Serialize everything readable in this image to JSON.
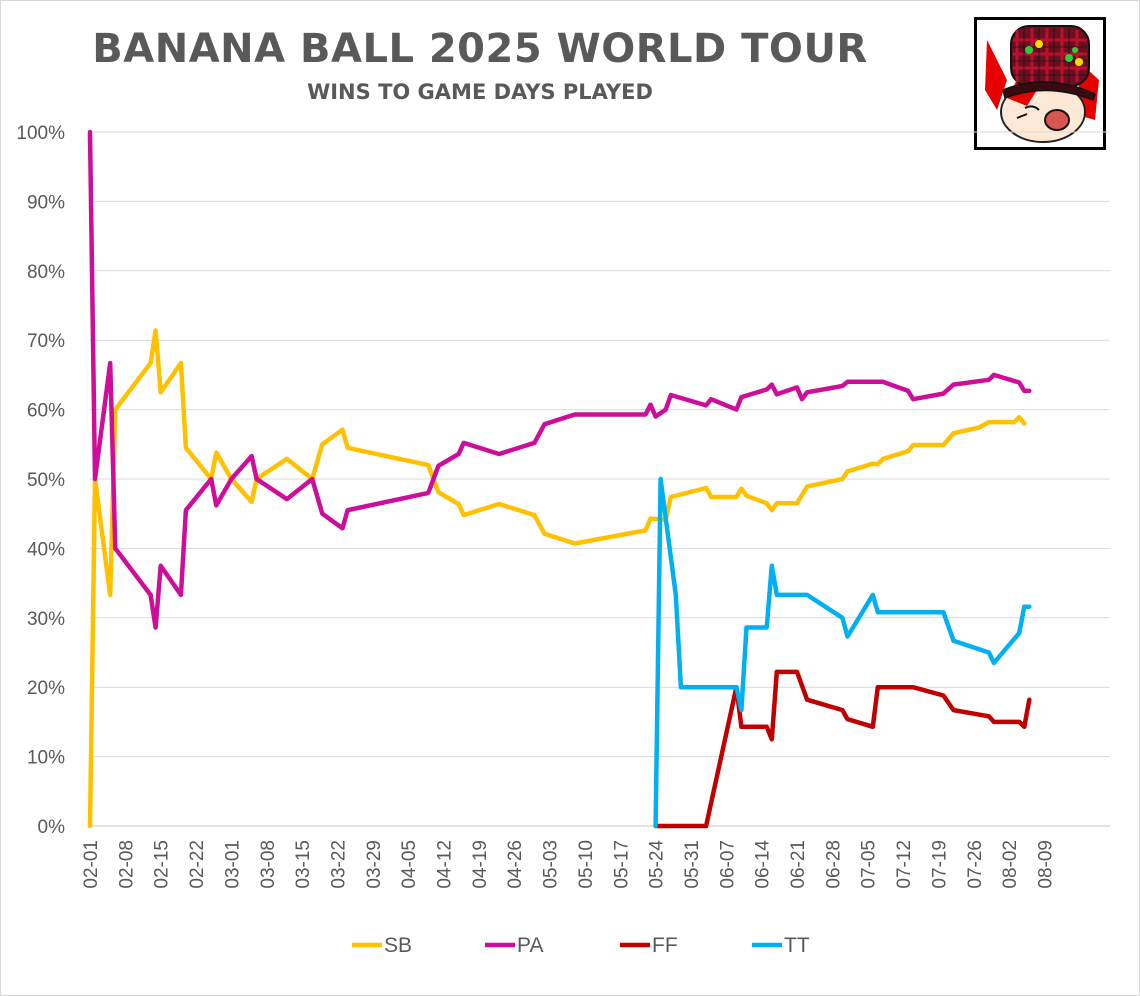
{
  "chart_data": {
    "type": "line",
    "title": "BANANA BALL 2025 WORLD TOUR",
    "subtitle": "WINS TO GAME DAYS PLAYED",
    "xlabel": "",
    "ylabel": "",
    "ylim": [
      0,
      100
    ],
    "y_ticks": [
      "0%",
      "10%",
      "20%",
      "30%",
      "40%",
      "50%",
      "60%",
      "70%",
      "80%",
      "90%",
      "100%"
    ],
    "x_ticks": [
      "02-01",
      "02-08",
      "02-15",
      "02-22",
      "03-01",
      "03-08",
      "03-15",
      "03-22",
      "03-29",
      "04-05",
      "04-12",
      "04-19",
      "04-26",
      "05-03",
      "05-10",
      "05-17",
      "05-24",
      "05-31",
      "06-07",
      "06-14",
      "06-21",
      "06-28",
      "07-05",
      "07-12",
      "07-19",
      "07-26",
      "08-02",
      "08-09"
    ],
    "x_start": "02-01",
    "grid": "horizontal",
    "legend_position": "bottom",
    "series": [
      {
        "name": "SB",
        "color": "#FFC000",
        "points": [
          [
            "02-01",
            0
          ],
          [
            "02-02",
            50
          ],
          [
            "02-05",
            33.3
          ],
          [
            "02-06",
            60
          ],
          [
            "02-13",
            66.7
          ],
          [
            "02-14",
            71.4
          ],
          [
            "02-15",
            62.5
          ],
          [
            "02-19",
            66.7
          ],
          [
            "02-20",
            54.5
          ],
          [
            "02-25",
            50
          ],
          [
            "02-26",
            53.8
          ],
          [
            "03-01",
            50
          ],
          [
            "03-05",
            46.7
          ],
          [
            "03-06",
            50
          ],
          [
            "03-12",
            52.9
          ],
          [
            "03-17",
            50
          ],
          [
            "03-19",
            55
          ],
          [
            "03-23",
            57.1
          ],
          [
            "03-24",
            54.5
          ],
          [
            "04-09",
            52
          ],
          [
            "04-11",
            48.1
          ],
          [
            "04-15",
            46.4
          ],
          [
            "04-16",
            44.8
          ],
          [
            "04-23",
            46.4
          ],
          [
            "04-30",
            44.8
          ],
          [
            "05-02",
            42.1
          ],
          [
            "05-08",
            40.7
          ],
          [
            "05-22",
            42.6
          ],
          [
            "05-23",
            44.3
          ],
          [
            "05-26",
            44.1
          ],
          [
            "05-27",
            47.4
          ],
          [
            "06-03",
            48.7
          ],
          [
            "06-04",
            47.4
          ],
          [
            "06-09",
            47.4
          ],
          [
            "06-10",
            48.6
          ],
          [
            "06-11",
            47.6
          ],
          [
            "06-15",
            46.5
          ],
          [
            "06-16",
            45.5
          ],
          [
            "06-17",
            46.5
          ],
          [
            "06-21",
            46.5
          ],
          [
            "06-23",
            48.9
          ],
          [
            "06-30",
            50
          ],
          [
            "07-01",
            51.1
          ],
          [
            "07-06",
            52.2
          ],
          [
            "07-07",
            52.1
          ],
          [
            "07-08",
            52.9
          ],
          [
            "07-13",
            54
          ],
          [
            "07-14",
            54.9
          ],
          [
            "07-20",
            54.9
          ],
          [
            "07-22",
            56.6
          ],
          [
            "07-27",
            57.4
          ],
          [
            "07-29",
            58.2
          ],
          [
            "08-03",
            58.2
          ],
          [
            "08-04",
            58.9
          ],
          [
            "08-05",
            58
          ]
        ]
      },
      {
        "name": "PA",
        "color": "#CC0E9A",
        "points": [
          [
            "02-01",
            100
          ],
          [
            "02-02",
            50
          ],
          [
            "02-05",
            66.7
          ],
          [
            "02-06",
            40
          ],
          [
            "02-13",
            33.3
          ],
          [
            "02-14",
            28.6
          ],
          [
            "02-15",
            37.5
          ],
          [
            "02-19",
            33.3
          ],
          [
            "02-20",
            45.5
          ],
          [
            "02-25",
            50
          ],
          [
            "02-26",
            46.2
          ],
          [
            "03-01",
            50
          ],
          [
            "03-05",
            53.3
          ],
          [
            "03-06",
            50
          ],
          [
            "03-12",
            47.1
          ],
          [
            "03-17",
            50
          ],
          [
            "03-19",
            45
          ],
          [
            "03-23",
            42.9
          ],
          [
            "03-24",
            45.5
          ],
          [
            "04-09",
            48
          ],
          [
            "04-11",
            51.9
          ],
          [
            "04-15",
            53.6
          ],
          [
            "04-16",
            55.2
          ],
          [
            "04-23",
            53.6
          ],
          [
            "04-30",
            55.2
          ],
          [
            "05-02",
            57.9
          ],
          [
            "05-08",
            59.3
          ],
          [
            "05-22",
            59.3
          ],
          [
            "05-23",
            60.7
          ],
          [
            "05-24",
            59
          ],
          [
            "05-26",
            60
          ],
          [
            "05-27",
            62.1
          ],
          [
            "06-03",
            60.6
          ],
          [
            "06-04",
            61.5
          ],
          [
            "06-09",
            60
          ],
          [
            "06-10",
            61.8
          ],
          [
            "06-15",
            62.9
          ],
          [
            "06-16",
            63.6
          ],
          [
            "06-17",
            62.2
          ],
          [
            "06-21",
            63.2
          ],
          [
            "06-22",
            61.5
          ],
          [
            "06-23",
            62.5
          ],
          [
            "06-30",
            63.4
          ],
          [
            "07-01",
            64
          ],
          [
            "07-06",
            64
          ],
          [
            "07-07",
            64
          ],
          [
            "07-08",
            64
          ],
          [
            "07-13",
            62.7
          ],
          [
            "07-14",
            61.5
          ],
          [
            "07-20",
            62.3
          ],
          [
            "07-22",
            63.6
          ],
          [
            "07-29",
            64.3
          ],
          [
            "07-30",
            65
          ],
          [
            "08-04",
            63.9
          ],
          [
            "08-05",
            62.7
          ],
          [
            "08-06",
            62.7
          ]
        ]
      },
      {
        "name": "FF",
        "color": "#C00000",
        "points": [
          [
            "05-24",
            0
          ],
          [
            "06-03",
            0
          ],
          [
            "06-09",
            20
          ],
          [
            "06-10",
            14.3
          ],
          [
            "06-15",
            14.3
          ],
          [
            "06-16",
            12.5
          ],
          [
            "06-17",
            22.2
          ],
          [
            "06-21",
            22.2
          ],
          [
            "06-23",
            18.2
          ],
          [
            "06-30",
            16.7
          ],
          [
            "07-01",
            15.4
          ],
          [
            "07-06",
            14.3
          ],
          [
            "07-07",
            20
          ],
          [
            "07-13",
            20
          ],
          [
            "07-14",
            20
          ],
          [
            "07-20",
            18.8
          ],
          [
            "07-22",
            16.7
          ],
          [
            "07-29",
            15.8
          ],
          [
            "07-30",
            15
          ],
          [
            "08-04",
            15
          ],
          [
            "08-05",
            14.3
          ],
          [
            "08-06",
            18.2
          ]
        ]
      },
      {
        "name": "TT",
        "color": "#00B0F0",
        "points": [
          [
            "05-24",
            0
          ],
          [
            "05-25",
            50
          ],
          [
            "05-28",
            33.3
          ],
          [
            "05-29",
            20
          ],
          [
            "06-03",
            20
          ],
          [
            "06-04",
            20
          ],
          [
            "06-09",
            20
          ],
          [
            "06-10",
            16.7
          ],
          [
            "06-11",
            28.6
          ],
          [
            "06-15",
            28.6
          ],
          [
            "06-16",
            37.5
          ],
          [
            "06-17",
            33.3
          ],
          [
            "06-21",
            33.3
          ],
          [
            "06-23",
            33.3
          ],
          [
            "06-30",
            30
          ],
          [
            "07-01",
            27.3
          ],
          [
            "07-06",
            33.3
          ],
          [
            "07-07",
            30.8
          ],
          [
            "07-13",
            30.8
          ],
          [
            "07-20",
            30.8
          ],
          [
            "07-22",
            26.7
          ],
          [
            "07-29",
            25
          ],
          [
            "07-30",
            23.5
          ],
          [
            "08-04",
            27.8
          ],
          [
            "08-05",
            31.6
          ],
          [
            "08-06",
            31.6
          ]
        ]
      }
    ]
  },
  "avatar": {
    "icon": "cartoon-avatar-icon"
  }
}
